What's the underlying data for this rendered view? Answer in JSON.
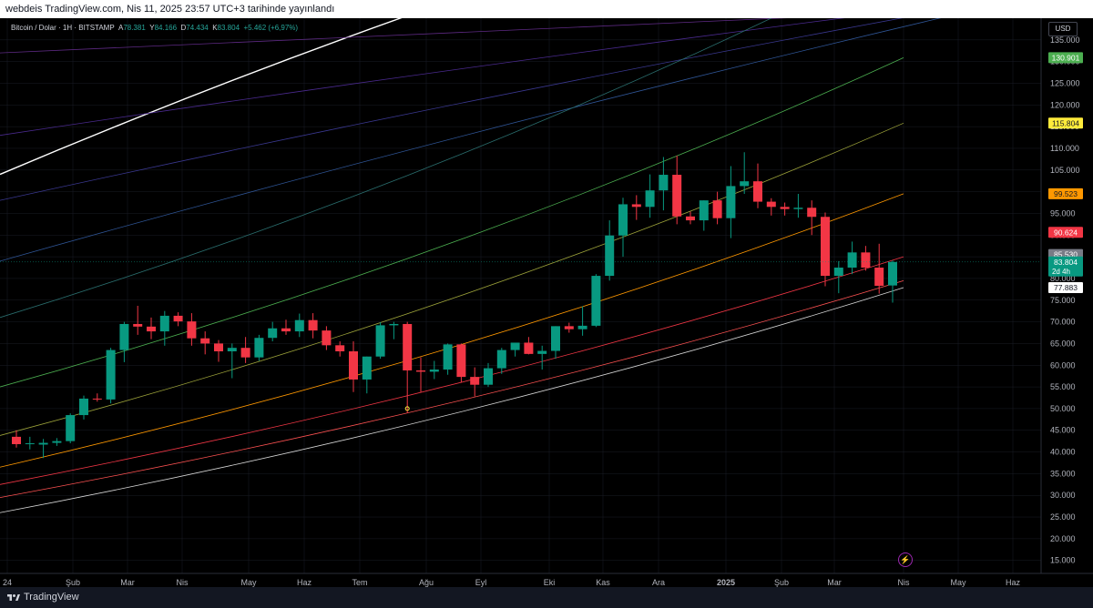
{
  "header": {
    "published_text": "webdeis TradingView.com, Nis 11, 2025 23:57 UTC+3 tarihinde yayınlandı"
  },
  "legend": {
    "symbol": "Bitcoin / Dolar · 1H · BITSTAMP",
    "open_label": "A",
    "open": "78.381",
    "high_label": "Y",
    "high": "84.166",
    "low_label": "D",
    "low": "74.434",
    "close_label": "K",
    "close": "83.804",
    "change": "+5.462 (+6,97%)"
  },
  "currency_button": "USD",
  "footer": {
    "brand": "TradingView"
  },
  "chart_data": {
    "type": "candlestick",
    "symbol": "Bitcoin / Dolar",
    "timeframe": "1H",
    "exchange": "BITSTAMP",
    "x_ticks": [
      "24",
      "Şub",
      "Mar",
      "Nis",
      "May",
      "Haz",
      "Tem",
      "Ağu",
      "Eyl",
      "Eki",
      "Kas",
      "Ara",
      "2025",
      "Şub",
      "Mar",
      "Nis",
      "May",
      "Haz"
    ],
    "y_ticks": [
      "135.000",
      "130.000",
      "125.000",
      "120.000",
      "115.000",
      "110.000",
      "105.000",
      "100.000",
      "95.000",
      "90.000",
      "85.000",
      "80.000",
      "75.000",
      "70.000",
      "65.000",
      "60.000",
      "55.000",
      "50.000",
      "45.000",
      "40.000",
      "35.000",
      "30.000",
      "25.000",
      "20.000",
      "15.000"
    ],
    "y_range": [
      12000,
      140000
    ],
    "candles": [
      {
        "o": 43500,
        "h": 45000,
        "l": 41000,
        "c": 41800
      },
      {
        "o": 41800,
        "h": 43500,
        "l": 40600,
        "c": 42000
      },
      {
        "o": 41700,
        "h": 43000,
        "l": 38600,
        "c": 42100
      },
      {
        "o": 42100,
        "h": 43200,
        "l": 41400,
        "c": 42500
      },
      {
        "o": 42500,
        "h": 48900,
        "l": 42000,
        "c": 48500
      },
      {
        "o": 48500,
        "h": 53000,
        "l": 47500,
        "c": 52300
      },
      {
        "o": 52300,
        "h": 53500,
        "l": 51600,
        "c": 52100
      },
      {
        "o": 52100,
        "h": 64000,
        "l": 51200,
        "c": 63500
      },
      {
        "o": 63500,
        "h": 70000,
        "l": 60700,
        "c": 69500
      },
      {
        "o": 69500,
        "h": 73700,
        "l": 67000,
        "c": 68900
      },
      {
        "o": 68900,
        "h": 71000,
        "l": 66000,
        "c": 67800
      },
      {
        "o": 67800,
        "h": 72500,
        "l": 64500,
        "c": 71400
      },
      {
        "o": 71400,
        "h": 72200,
        "l": 69000,
        "c": 70100
      },
      {
        "o": 70100,
        "h": 72000,
        "l": 64500,
        "c": 66200
      },
      {
        "o": 66200,
        "h": 67800,
        "l": 62500,
        "c": 65000
      },
      {
        "o": 65000,
        "h": 65800,
        "l": 60800,
        "c": 63200
      },
      {
        "o": 63200,
        "h": 65000,
        "l": 57000,
        "c": 64000
      },
      {
        "o": 64000,
        "h": 66500,
        "l": 60500,
        "c": 61800
      },
      {
        "o": 61800,
        "h": 67000,
        "l": 61000,
        "c": 66300
      },
      {
        "o": 66300,
        "h": 70000,
        "l": 65500,
        "c": 68500
      },
      {
        "o": 68500,
        "h": 70500,
        "l": 67000,
        "c": 67800
      },
      {
        "o": 67800,
        "h": 71900,
        "l": 66500,
        "c": 70400
      },
      {
        "o": 70400,
        "h": 72000,
        "l": 66200,
        "c": 68000
      },
      {
        "o": 68000,
        "h": 69000,
        "l": 63500,
        "c": 64600
      },
      {
        "o": 64600,
        "h": 65500,
        "l": 62000,
        "c": 63200
      },
      {
        "o": 63200,
        "h": 65500,
        "l": 53800,
        "c": 56700
      },
      {
        "o": 56700,
        "h": 62000,
        "l": 53500,
        "c": 62000
      },
      {
        "o": 62000,
        "h": 69900,
        "l": 61500,
        "c": 69200
      },
      {
        "o": 69200,
        "h": 70000,
        "l": 66000,
        "c": 69500
      },
      {
        "o": 69500,
        "h": 70000,
        "l": 49000,
        "c": 58800
      },
      {
        "o": 58800,
        "h": 61800,
        "l": 53800,
        "c": 58500
      },
      {
        "o": 58500,
        "h": 61000,
        "l": 56800,
        "c": 59000
      },
      {
        "o": 59000,
        "h": 65000,
        "l": 57800,
        "c": 64800
      },
      {
        "o": 64800,
        "h": 65000,
        "l": 56000,
        "c": 57300
      },
      {
        "o": 57300,
        "h": 59500,
        "l": 52800,
        "c": 55500
      },
      {
        "o": 55500,
        "h": 60500,
        "l": 55000,
        "c": 59300
      },
      {
        "o": 59300,
        "h": 64000,
        "l": 58000,
        "c": 63500
      },
      {
        "o": 63500,
        "h": 65000,
        "l": 62000,
        "c": 65200
      },
      {
        "o": 65200,
        "h": 66500,
        "l": 62500,
        "c": 62600
      },
      {
        "o": 62600,
        "h": 64500,
        "l": 59000,
        "c": 63300
      },
      {
        "o": 63300,
        "h": 69000,
        "l": 61500,
        "c": 69000
      },
      {
        "o": 69000,
        "h": 69800,
        "l": 67500,
        "c": 68300
      },
      {
        "o": 68300,
        "h": 73600,
        "l": 66800,
        "c": 69100
      },
      {
        "o": 69100,
        "h": 81000,
        "l": 68800,
        "c": 80600
      },
      {
        "o": 80600,
        "h": 93400,
        "l": 79500,
        "c": 89900
      },
      {
        "o": 89900,
        "h": 98600,
        "l": 85000,
        "c": 97100
      },
      {
        "o": 97100,
        "h": 99200,
        "l": 93500,
        "c": 96500
      },
      {
        "o": 96500,
        "h": 104000,
        "l": 94000,
        "c": 100300
      },
      {
        "o": 100300,
        "h": 108000,
        "l": 95700,
        "c": 103900
      },
      {
        "o": 103900,
        "h": 108300,
        "l": 92500,
        "c": 94300
      },
      {
        "o": 94300,
        "h": 95400,
        "l": 92500,
        "c": 93400
      },
      {
        "o": 93400,
        "h": 98000,
        "l": 91000,
        "c": 98000
      },
      {
        "o": 98000,
        "h": 100000,
        "l": 92500,
        "c": 93900
      },
      {
        "o": 93900,
        "h": 105900,
        "l": 89300,
        "c": 101300
      },
      {
        "o": 101300,
        "h": 109100,
        "l": 99500,
        "c": 102400
      },
      {
        "o": 102400,
        "h": 106500,
        "l": 96200,
        "c": 97700
      },
      {
        "o": 97700,
        "h": 98500,
        "l": 94500,
        "c": 96500
      },
      {
        "o": 96500,
        "h": 97500,
        "l": 94500,
        "c": 96000
      },
      {
        "o": 96000,
        "h": 99500,
        "l": 94000,
        "c": 96300
      },
      {
        "o": 96300,
        "h": 98000,
        "l": 90000,
        "c": 94200
      },
      {
        "o": 94200,
        "h": 95200,
        "l": 78200,
        "c": 80600
      },
      {
        "o": 80600,
        "h": 84000,
        "l": 76600,
        "c": 82500
      },
      {
        "o": 82500,
        "h": 88500,
        "l": 81000,
        "c": 86000
      },
      {
        "o": 86000,
        "h": 87500,
        "l": 81800,
        "c": 82500
      },
      {
        "o": 82500,
        "h": 88000,
        "l": 76500,
        "c": 78300
      },
      {
        "o": 78381,
        "h": 84166,
        "l": 74434,
        "c": 83804
      }
    ],
    "marker": {
      "candle_index": 29,
      "value": 50000
    },
    "price_labels": [
      {
        "text": "130.901",
        "value": 130901,
        "color": "#4caf50"
      },
      {
        "text": "115.804",
        "value": 115804,
        "color": "#ffeb3b"
      },
      {
        "text": "99.523",
        "value": 99523,
        "color": "#ff9800"
      },
      {
        "text": "90.624",
        "value": 90624,
        "color": "#f23645"
      },
      {
        "text": "85.530",
        "value": 85530,
        "color": "#787b86"
      },
      {
        "text": "83.804",
        "value": 83804,
        "color": "#089981",
        "sub": "2d 4h"
      },
      {
        "text": "77.883",
        "value": 77883,
        "color": "#ffffff"
      }
    ],
    "bands": [
      {
        "color": "#ffffff",
        "width": 1.4,
        "v0": 104000,
        "v1": null,
        "exit_x": 445
      },
      {
        "color": "#5e2a84",
        "width": 0.8,
        "v0": 132000,
        "v1": null,
        "exit_x": 900
      },
      {
        "color": "#4a2a8e",
        "width": 0.8,
        "v0": 113000,
        "v1": null,
        "exit_x": 940
      },
      {
        "color": "#3a3890",
        "width": 0.8,
        "v0": 98000,
        "v1": null,
        "exit_x": 1000
      },
      {
        "color": "#2f5596",
        "width": 0.8,
        "v0": 84000,
        "v1": null,
        "exit_x": 1040
      },
      {
        "color": "#2a6e6e",
        "width": 0.8,
        "v0": 71000,
        "v1": 155000
      },
      {
        "color": "#4caf50",
        "width": 0.8,
        "v0": 55000,
        "v1": 130901
      },
      {
        "color": "#9da33a",
        "width": 0.8,
        "v0": 43800,
        "v1": 115804
      },
      {
        "color": "#ff9800",
        "width": 0.8,
        "v0": 36500,
        "v1": 99523
      },
      {
        "color": "#f23645",
        "width": 0.8,
        "v0": 32500,
        "v1": 85000
      },
      {
        "color": "#ff5252",
        "width": 0.8,
        "v0": 29500,
        "v1": 79500
      },
      {
        "color": "#d8d8d8",
        "width": 0.8,
        "v0": 26000,
        "v1": 77883
      }
    ],
    "colors": {
      "up": "#089981",
      "down": "#f23645",
      "grid": "#1a1d26",
      "background": "#000000"
    }
  }
}
